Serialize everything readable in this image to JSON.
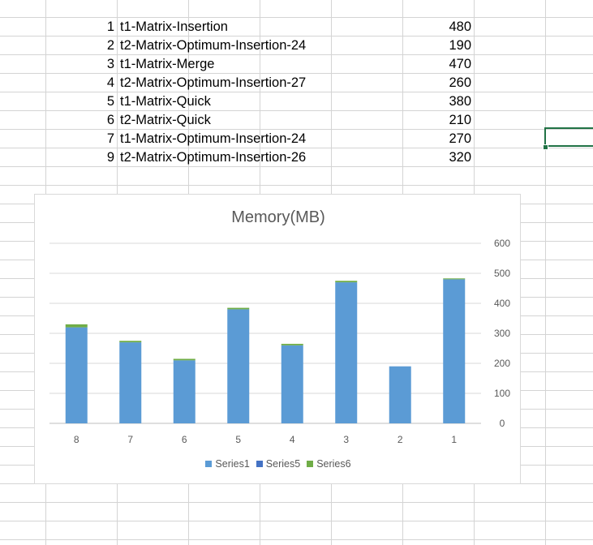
{
  "sheet": {
    "rows": [
      {
        "index": "1",
        "name": "t1-Matrix-Insertion",
        "value": "480"
      },
      {
        "index": "2",
        "name": "t2-Matrix-Optimum-Insertion-24",
        "value": "190"
      },
      {
        "index": "3",
        "name": "t1-Matrix-Merge",
        "value": "470"
      },
      {
        "index": "4",
        "name": "t2-Matrix-Optimum-Insertion-27",
        "value": "260"
      },
      {
        "index": "5",
        "name": "t1-Matrix-Quick",
        "value": "380"
      },
      {
        "index": "6",
        "name": "t2-Matrix-Quick",
        "value": "210"
      },
      {
        "index": "7",
        "name": "t1-Matrix-Optimum-Insertion-24",
        "value": "270"
      },
      {
        "index": "9",
        "name": "t2-Matrix-Optimum-Insertion-26",
        "value": "320"
      }
    ]
  },
  "chart_data": {
    "type": "bar",
    "title": "Memory(MB)",
    "xlabel": "",
    "ylabel": "",
    "categories": [
      "8",
      "7",
      "6",
      "5",
      "4",
      "3",
      "2",
      "1"
    ],
    "series": [
      {
        "name": "Series1",
        "values": [
          320,
          270,
          210,
          380,
          260,
          470,
          190,
          480
        ],
        "color": "#5b9bd5"
      },
      {
        "name": "Series5",
        "values": [
          0,
          0,
          0,
          0,
          0,
          0,
          0,
          0
        ],
        "color": "#4472c4"
      },
      {
        "name": "Series6",
        "values": [
          10,
          5,
          5,
          5,
          5,
          5,
          0,
          3
        ],
        "color": "#70ad47"
      }
    ],
    "stacked": true,
    "ylim": [
      0,
      600
    ],
    "yticks": [
      "0",
      "100",
      "200",
      "300",
      "400",
      "500",
      "600"
    ],
    "y_axis_position": "right",
    "grid": true,
    "legend": "bottom"
  }
}
